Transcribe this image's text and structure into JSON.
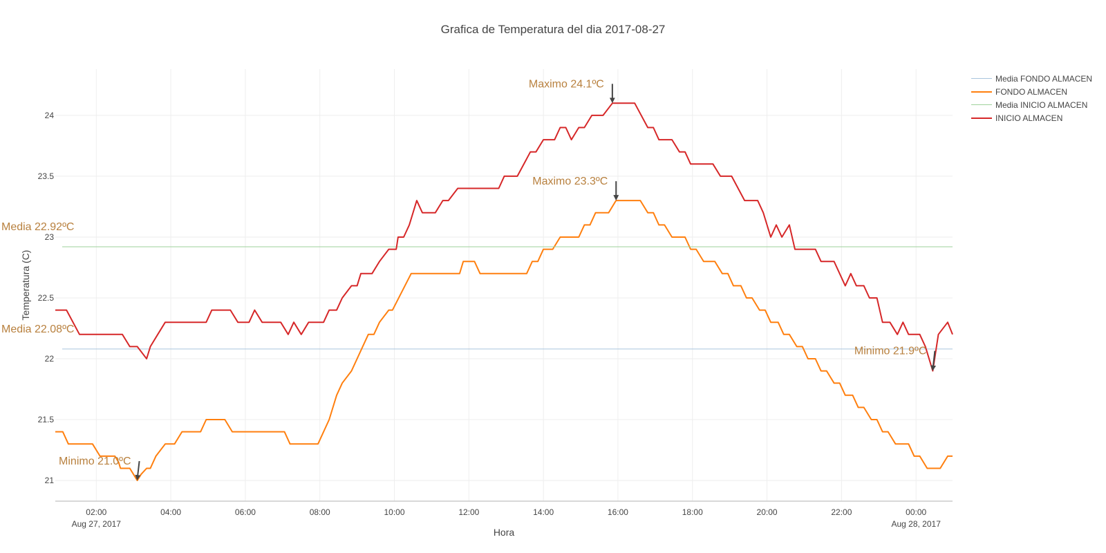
{
  "chart_data": {
    "type": "line",
    "title": "Grafica de Temperatura del dia 2017-08-27",
    "xlabel": "Hora",
    "ylabel": "Temperatura (C)",
    "x_range_hours": [
      0.9,
      24.98
    ],
    "ylim": [
      20.83,
      24.38
    ],
    "grid": true,
    "legend_position": "top-right",
    "x_ticks": [
      {
        "hour": 2,
        "label": "02:00",
        "sublabel": "Aug 27, 2017"
      },
      {
        "hour": 4,
        "label": "04:00",
        "sublabel": ""
      },
      {
        "hour": 6,
        "label": "06:00",
        "sublabel": ""
      },
      {
        "hour": 8,
        "label": "08:00",
        "sublabel": ""
      },
      {
        "hour": 10,
        "label": "10:00",
        "sublabel": ""
      },
      {
        "hour": 12,
        "label": "12:00",
        "sublabel": ""
      },
      {
        "hour": 14,
        "label": "14:00",
        "sublabel": ""
      },
      {
        "hour": 16,
        "label": "16:00",
        "sublabel": ""
      },
      {
        "hour": 18,
        "label": "18:00",
        "sublabel": ""
      },
      {
        "hour": 20,
        "label": "20:00",
        "sublabel": ""
      },
      {
        "hour": 22,
        "label": "22:00",
        "sublabel": ""
      },
      {
        "hour": 24,
        "label": "00:00",
        "sublabel": "Aug 28, 2017"
      }
    ],
    "y_ticks": [
      {
        "value": 21,
        "label": "21"
      },
      {
        "value": 21.5,
        "label": "21.5"
      },
      {
        "value": 22,
        "label": "22"
      },
      {
        "value": 22.5,
        "label": "22.5"
      },
      {
        "value": 23,
        "label": "23"
      },
      {
        "value": 23.5,
        "label": "23.5"
      },
      {
        "value": 24,
        "label": "24"
      }
    ],
    "series": [
      {
        "name": "Media FONDO ALMACEN",
        "kind": "mean",
        "color": "#a9c4de",
        "value": 22.08
      },
      {
        "name": "FONDO ALMACEN",
        "kind": "line",
        "color": "#ff7f0e",
        "points": [
          [
            0.9,
            21.4
          ],
          [
            1.1,
            21.4
          ],
          [
            1.25,
            21.3
          ],
          [
            1.9,
            21.3
          ],
          [
            2.1,
            21.2
          ],
          [
            2.5,
            21.2
          ],
          [
            2.6,
            21.15
          ],
          [
            2.65,
            21.1
          ],
          [
            2.9,
            21.1
          ],
          [
            3.0,
            21.05
          ],
          [
            3.1,
            21.0
          ],
          [
            3.2,
            21.05
          ],
          [
            3.35,
            21.1
          ],
          [
            3.45,
            21.1
          ],
          [
            3.6,
            21.2
          ],
          [
            3.85,
            21.3
          ],
          [
            4.1,
            21.3
          ],
          [
            4.3,
            21.4
          ],
          [
            4.8,
            21.4
          ],
          [
            4.95,
            21.5
          ],
          [
            5.45,
            21.5
          ],
          [
            5.65,
            21.4
          ],
          [
            7.05,
            21.4
          ],
          [
            7.2,
            21.3
          ],
          [
            7.95,
            21.3
          ],
          [
            8.25,
            21.5
          ],
          [
            8.45,
            21.7
          ],
          [
            8.6,
            21.8
          ],
          [
            8.85,
            21.9
          ],
          [
            9.0,
            22.0
          ],
          [
            9.3,
            22.2
          ],
          [
            9.45,
            22.2
          ],
          [
            9.6,
            22.3
          ],
          [
            9.85,
            22.4
          ],
          [
            9.95,
            22.4
          ],
          [
            10.45,
            22.7
          ],
          [
            11.75,
            22.7
          ],
          [
            11.85,
            22.8
          ],
          [
            12.15,
            22.8
          ],
          [
            12.3,
            22.7
          ],
          [
            13.55,
            22.7
          ],
          [
            13.7,
            22.8
          ],
          [
            13.85,
            22.8
          ],
          [
            14.0,
            22.9
          ],
          [
            14.25,
            22.9
          ],
          [
            14.45,
            23.0
          ],
          [
            14.95,
            23.0
          ],
          [
            15.1,
            23.1
          ],
          [
            15.25,
            23.1
          ],
          [
            15.4,
            23.2
          ],
          [
            15.75,
            23.2
          ],
          [
            15.95,
            23.3
          ],
          [
            16.6,
            23.3
          ],
          [
            16.8,
            23.2
          ],
          [
            16.95,
            23.2
          ],
          [
            17.1,
            23.1
          ],
          [
            17.25,
            23.1
          ],
          [
            17.45,
            23.0
          ],
          [
            17.8,
            23.0
          ],
          [
            17.95,
            22.9
          ],
          [
            18.1,
            22.9
          ],
          [
            18.3,
            22.8
          ],
          [
            18.6,
            22.8
          ],
          [
            18.8,
            22.7
          ],
          [
            18.95,
            22.7
          ],
          [
            19.1,
            22.6
          ],
          [
            19.3,
            22.6
          ],
          [
            19.45,
            22.5
          ],
          [
            19.6,
            22.5
          ],
          [
            19.8,
            22.4
          ],
          [
            19.95,
            22.4
          ],
          [
            20.1,
            22.3
          ],
          [
            20.3,
            22.3
          ],
          [
            20.45,
            22.2
          ],
          [
            20.6,
            22.2
          ],
          [
            20.8,
            22.1
          ],
          [
            20.95,
            22.1
          ],
          [
            21.1,
            22.0
          ],
          [
            21.3,
            22.0
          ],
          [
            21.45,
            21.9
          ],
          [
            21.6,
            21.9
          ],
          [
            21.8,
            21.8
          ],
          [
            21.95,
            21.8
          ],
          [
            22.1,
            21.7
          ],
          [
            22.3,
            21.7
          ],
          [
            22.45,
            21.6
          ],
          [
            22.6,
            21.6
          ],
          [
            22.8,
            21.5
          ],
          [
            22.95,
            21.5
          ],
          [
            23.1,
            21.4
          ],
          [
            23.25,
            21.4
          ],
          [
            23.45,
            21.3
          ],
          [
            23.8,
            21.3
          ],
          [
            23.95,
            21.2
          ],
          [
            24.1,
            21.2
          ],
          [
            24.3,
            21.1
          ],
          [
            24.65,
            21.1
          ],
          [
            24.85,
            21.2
          ],
          [
            24.98,
            21.2
          ]
        ]
      },
      {
        "name": "Media INICIO ALMACEN",
        "kind": "mean",
        "color": "#9ed19a",
        "value": 22.92
      },
      {
        "name": "INICIO ALMACEN",
        "kind": "line",
        "color": "#d62728",
        "points": [
          [
            0.9,
            22.4
          ],
          [
            1.2,
            22.4
          ],
          [
            1.55,
            22.2
          ],
          [
            2.7,
            22.2
          ],
          [
            2.9,
            22.1
          ],
          [
            3.1,
            22.1
          ],
          [
            3.35,
            22.0
          ],
          [
            3.45,
            22.1
          ],
          [
            3.65,
            22.2
          ],
          [
            3.85,
            22.3
          ],
          [
            4.95,
            22.3
          ],
          [
            5.1,
            22.4
          ],
          [
            5.6,
            22.4
          ],
          [
            5.8,
            22.3
          ],
          [
            6.1,
            22.3
          ],
          [
            6.25,
            22.4
          ],
          [
            6.45,
            22.3
          ],
          [
            6.95,
            22.3
          ],
          [
            7.15,
            22.2
          ],
          [
            7.3,
            22.3
          ],
          [
            7.5,
            22.2
          ],
          [
            7.7,
            22.3
          ],
          [
            8.1,
            22.3
          ],
          [
            8.25,
            22.4
          ],
          [
            8.45,
            22.4
          ],
          [
            8.6,
            22.5
          ],
          [
            8.85,
            22.6
          ],
          [
            9.0,
            22.6
          ],
          [
            9.1,
            22.7
          ],
          [
            9.4,
            22.7
          ],
          [
            9.6,
            22.8
          ],
          [
            9.85,
            22.9
          ],
          [
            10.05,
            22.9
          ],
          [
            10.1,
            23.0
          ],
          [
            10.25,
            23.0
          ],
          [
            10.4,
            23.1
          ],
          [
            10.6,
            23.3
          ],
          [
            10.75,
            23.2
          ],
          [
            11.1,
            23.2
          ],
          [
            11.3,
            23.3
          ],
          [
            11.45,
            23.3
          ],
          [
            11.7,
            23.4
          ],
          [
            12.8,
            23.4
          ],
          [
            12.95,
            23.5
          ],
          [
            13.3,
            23.5
          ],
          [
            13.65,
            23.7
          ],
          [
            13.8,
            23.7
          ],
          [
            14.0,
            23.8
          ],
          [
            14.3,
            23.8
          ],
          [
            14.45,
            23.9
          ],
          [
            14.6,
            23.9
          ],
          [
            14.75,
            23.8
          ],
          [
            14.95,
            23.9
          ],
          [
            15.1,
            23.9
          ],
          [
            15.3,
            24.0
          ],
          [
            15.6,
            24.0
          ],
          [
            15.85,
            24.1
          ],
          [
            16.45,
            24.1
          ],
          [
            16.8,
            23.9
          ],
          [
            16.95,
            23.9
          ],
          [
            17.1,
            23.8
          ],
          [
            17.45,
            23.8
          ],
          [
            17.65,
            23.7
          ],
          [
            17.8,
            23.7
          ],
          [
            17.95,
            23.6
          ],
          [
            18.55,
            23.6
          ],
          [
            18.75,
            23.5
          ],
          [
            19.05,
            23.5
          ],
          [
            19.4,
            23.3
          ],
          [
            19.75,
            23.3
          ],
          [
            19.9,
            23.2
          ],
          [
            20.1,
            23.0
          ],
          [
            20.25,
            23.1
          ],
          [
            20.4,
            23.0
          ],
          [
            20.6,
            23.1
          ],
          [
            20.75,
            22.9
          ],
          [
            21.3,
            22.9
          ],
          [
            21.45,
            22.8
          ],
          [
            21.8,
            22.8
          ],
          [
            22.1,
            22.6
          ],
          [
            22.25,
            22.7
          ],
          [
            22.4,
            22.6
          ],
          [
            22.6,
            22.6
          ],
          [
            22.75,
            22.5
          ],
          [
            22.95,
            22.5
          ],
          [
            23.1,
            22.3
          ],
          [
            23.3,
            22.3
          ],
          [
            23.5,
            22.2
          ],
          [
            23.65,
            22.3
          ],
          [
            23.8,
            22.2
          ],
          [
            24.1,
            22.2
          ],
          [
            24.25,
            22.1
          ],
          [
            24.45,
            21.9
          ],
          [
            24.6,
            22.2
          ],
          [
            24.85,
            22.3
          ],
          [
            24.98,
            22.2
          ]
        ]
      }
    ],
    "annotations": [
      {
        "text": "Maximo 24.1ºC",
        "hour": 15.85,
        "value": 24.1,
        "anchor": "end",
        "dx": -12,
        "dy": -28
      },
      {
        "text": "Maximo 23.3ºC",
        "hour": 15.95,
        "value": 23.3,
        "anchor": "end",
        "dx": -12,
        "dy": -28
      },
      {
        "text": "Minimo 21.0ºC",
        "hour": 3.1,
        "value": 21.0,
        "anchor": "end",
        "dx": -9,
        "dy": -28
      },
      {
        "text": "Minimo 21.9ºC",
        "hour": 24.45,
        "value": 21.9,
        "anchor": "end",
        "dx": -9,
        "dy": -29
      },
      {
        "text": "Media 22.92ºC",
        "hour": null,
        "value": 22.92,
        "anchor": "start",
        "dx": 2,
        "dy": -29
      },
      {
        "text": "Media 22.08ºC",
        "hour": null,
        "value": 22.08,
        "anchor": "start",
        "dx": 2,
        "dy": -29
      }
    ],
    "annotation_color": "#b8803e",
    "arrow_color": "#444444"
  }
}
